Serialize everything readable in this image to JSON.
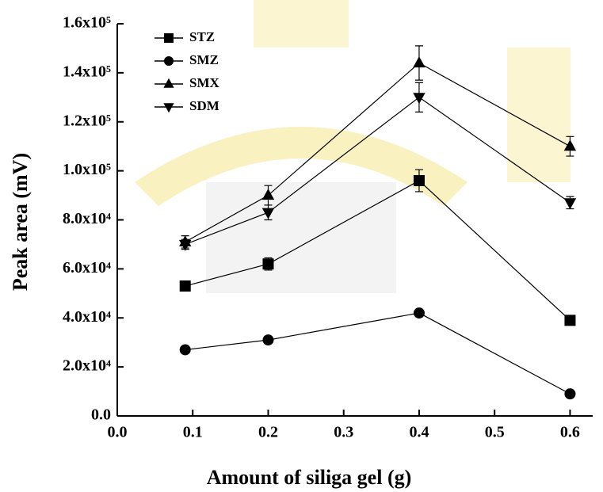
{
  "chart_data": {
    "type": "line",
    "xlabel": "Amount of siliga gel (g)",
    "ylabel": "Peak area (mV)",
    "x": [
      0.09,
      0.2,
      0.4,
      0.6
    ],
    "series": [
      {
        "name": "STZ",
        "color": "#000000",
        "marker": "square",
        "values": [
          53000,
          62000,
          96000,
          39000
        ],
        "errors": [
          2000,
          2500,
          4500,
          1000
        ]
      },
      {
        "name": "SMZ",
        "color": "#000000",
        "marker": "circle",
        "values": [
          27000,
          31000,
          42000,
          9000
        ],
        "errors": [
          500,
          800,
          1500,
          300
        ]
      },
      {
        "name": "SMX",
        "color": "#000000",
        "marker": "triangle",
        "values": [
          71000,
          90000,
          144000,
          110000
        ],
        "errors": [
          2500,
          4000,
          7000,
          4000
        ]
      },
      {
        "name": "SDM",
        "color": "#000000",
        "marker": "triangle-down",
        "values": [
          70000,
          83000,
          130000,
          87000
        ],
        "errors": [
          2000,
          3000,
          6000,
          2500
        ]
      }
    ],
    "xlim": [
      0,
      0.63
    ],
    "xticks": [
      {
        "value": 0,
        "label": "0.0"
      },
      0.1,
      0.2,
      0.3,
      0.4,
      0.5,
      0.6
    ],
    "ylim": [
      0,
      160000
    ],
    "yticks": [
      {
        "value": 0,
        "label": "0.0"
      },
      {
        "value": 20000,
        "label": "2.0x10⁴"
      },
      {
        "value": 40000,
        "label": "4.0x10⁴"
      },
      {
        "value": 60000,
        "label": "6.0x10⁴"
      },
      {
        "value": 80000,
        "label": "8.0x10⁴"
      },
      {
        "value": 100000,
        "label": "1.0x10⁵"
      },
      {
        "value": 120000,
        "label": "1.2x10⁵"
      },
      {
        "value": 140000,
        "label": "1.4x10⁵"
      },
      {
        "value": 160000,
        "label": "1.6x10⁵"
      }
    ],
    "legend": "upper left",
    "grid": false
  }
}
